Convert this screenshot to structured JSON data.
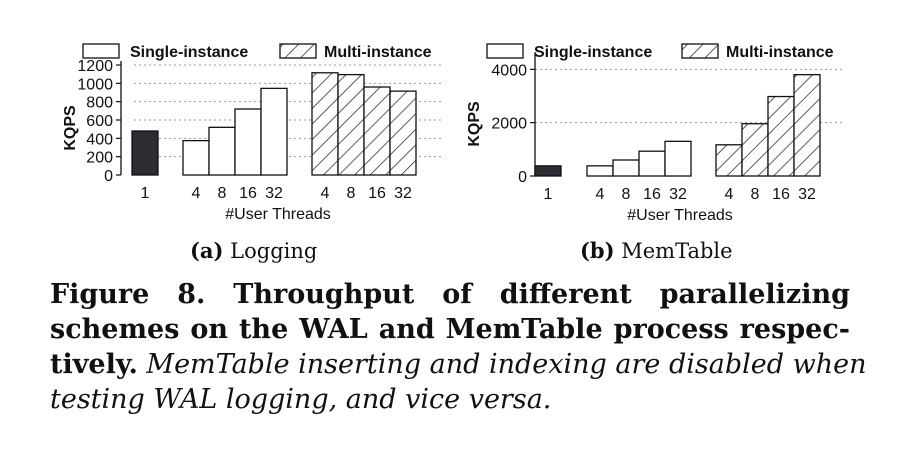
{
  "chart_data": [
    {
      "type": "bar",
      "ylabel": "KQPS",
      "xlabel": "#User Threads",
      "ylim": [
        0,
        1200
      ],
      "yticks": [
        0,
        200,
        400,
        600,
        800,
        1000,
        1200
      ],
      "grid": "horizontal dashed",
      "legend": "top",
      "legend_entries": [
        "Single-instance",
        "Multi-instance"
      ],
      "groups": [
        {
          "name": "",
          "fill": "solid-dark",
          "categories": [
            "1"
          ],
          "values": [
            480
          ]
        },
        {
          "name": "Single-instance",
          "fill": "white",
          "categories": [
            "4",
            "8",
            "16",
            "32"
          ],
          "values": [
            375,
            520,
            720,
            945
          ]
        },
        {
          "name": "Multi-instance",
          "fill": "hatched",
          "categories": [
            "4",
            "8",
            "16",
            "32"
          ],
          "values": [
            1115,
            1095,
            960,
            915
          ]
        }
      ]
    },
    {
      "type": "bar",
      "ylabel": "KQPS",
      "xlabel": "#User Threads",
      "ylim": [
        0,
        4500
      ],
      "yticks": [
        0,
        2000,
        4000
      ],
      "grid": "horizontal dashed",
      "legend": "top",
      "legend_entries": [
        "Single-instance",
        "Multi-instance"
      ],
      "groups": [
        {
          "name": "",
          "fill": "solid-dark",
          "categories": [
            "1"
          ],
          "values": [
            380
          ]
        },
        {
          "name": "Single-instance",
          "fill": "white",
          "categories": [
            "4",
            "8",
            "16",
            "32"
          ],
          "values": [
            380,
            600,
            930,
            1300
          ]
        },
        {
          "name": "Multi-instance",
          "fill": "hatched",
          "categories": [
            "4",
            "8",
            "16",
            "32"
          ],
          "values": [
            1170,
            1960,
            2980,
            3800
          ]
        }
      ]
    }
  ],
  "subcaptions": {
    "a_label": "(a)",
    "a_text": "Logging",
    "b_label": "(b)",
    "b_text": "MemTable"
  },
  "caption": {
    "line1": "Figure 8. Throughput of different parallelizing",
    "line2": "schemes on the WAL and MemTable process respec-",
    "line3_bold": "tively.",
    "line3_italic": " MemTable inserting and indexing are disabled when",
    "line4_italic": "testing WAL logging, and vice versa."
  },
  "colors": {
    "dark_bar": "#2b2d33",
    "outline": "#111111",
    "grid": "#9a9a9a",
    "hatch": "#333333"
  }
}
